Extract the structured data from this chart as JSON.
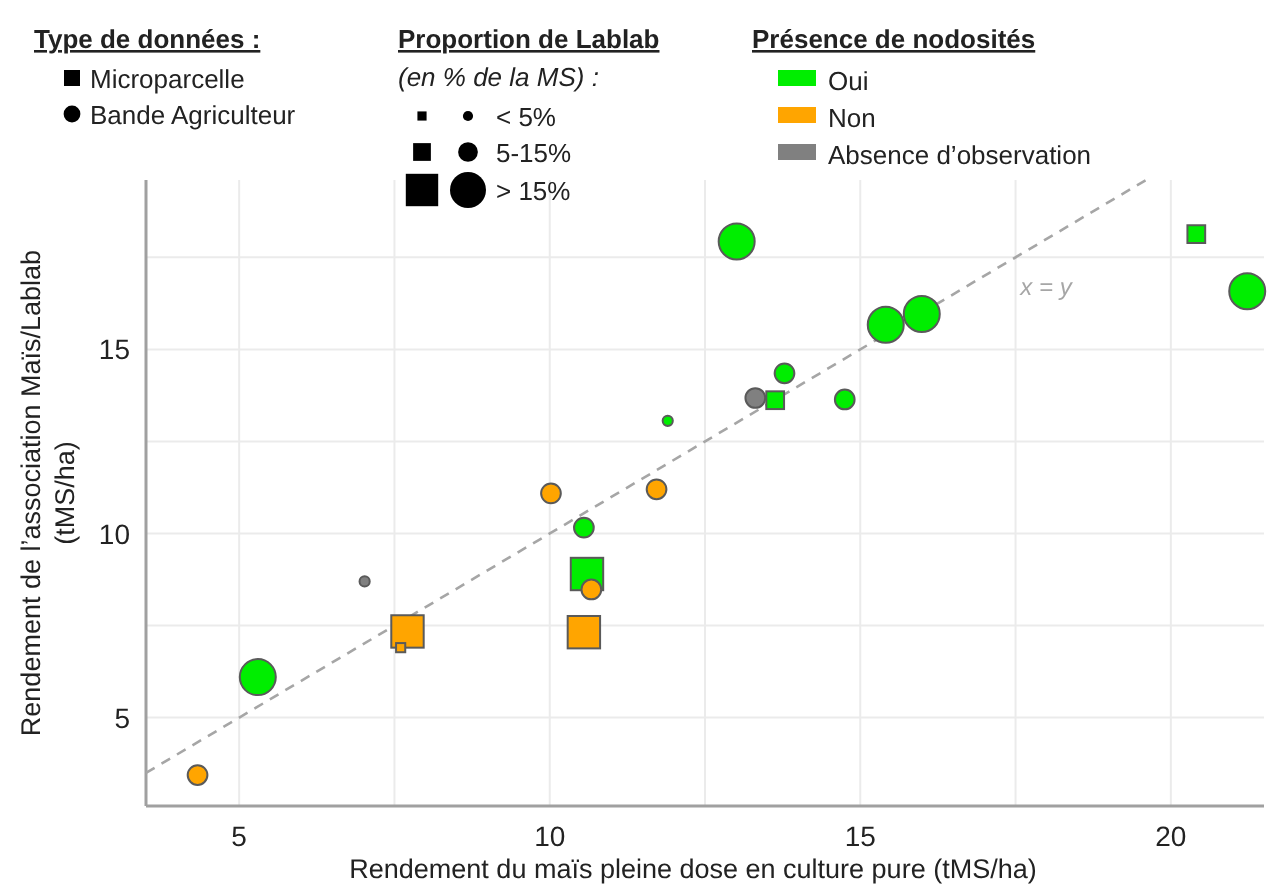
{
  "chart_data": {
    "type": "bubble",
    "xlabel": "Rendement du maïs pleine dose en culture pure (tMS/ha)",
    "ylabel": "Rendement de l’association Maïs/Lablab\n(tMS/ha)",
    "xlim": [
      3.5,
      21.5
    ],
    "ylim": [
      2.6,
      19.6
    ],
    "xticks": [
      5,
      {
        "value": 7.5,
        "label": null
      },
      10,
      {
        "value": 12.5,
        "label": null
      },
      15,
      {
        "value": 17.5,
        "label": null
      },
      20
    ],
    "yticks": [
      5,
      {
        "value": 7.5,
        "label": null
      },
      10,
      {
        "value": 12.5,
        "label": null
      },
      15,
      {
        "value": 17.5,
        "label": null
      }
    ],
    "grid": true,
    "legend": "top",
    "annotations": [
      "Type de données :",
      "Microparcelle",
      "Bande Agriculteur",
      "Proportion de Lablab",
      "(en % de la MS) :",
      "< 5%",
      "5-15%",
      "> 15%",
      "Présence de nodosités"
    ],
    "series": [
      {
        "name": "x = y",
        "type": "line",
        "color": "#a6a6a6",
        "line_style": "dashed",
        "marker": "none",
        "x": [
          3.5,
          19.6
        ],
        "values": [
          3.5,
          19.6
        ]
      },
      {
        "name": "Oui",
        "color": "#00ee00",
        "marker": "circle",
        "x": [
          5.3,
          10.55,
          11.9,
          13.01,
          13.78,
          14.75,
          15.41,
          15.99,
          21.23
        ],
        "values": [
          6.1,
          10.16,
          13.06,
          17.93,
          14.35,
          13.64,
          15.67,
          15.96,
          16.58
        ],
        "sizes": [
          1,
          0.3,
          0.08,
          1,
          0.3,
          0.3,
          1,
          1,
          1
        ]
      },
      {
        "color": "#00ee00",
        "marker": "square",
        "x": [
          10.6,
          13.63,
          20.41
        ],
        "values": [
          8.9,
          13.62,
          18.13
        ],
        "sizes": [
          1,
          0.3,
          0.3
        ]
      },
      {
        "name": "Non",
        "color": "#ffa500",
        "marker": "circle",
        "x": [
          4.33,
          10.02,
          10.67,
          11.72
        ],
        "values": [
          3.44,
          11.09,
          8.48,
          11.2
        ],
        "sizes": [
          0.3,
          0.3,
          0.3,
          0.3
        ]
      },
      {
        "color": "#ffa500",
        "marker": "square",
        "x": [
          7.71,
          7.6,
          10.55
        ],
        "values": [
          7.34,
          6.9,
          7.32
        ],
        "sizes": [
          1,
          0.08,
          1
        ]
      },
      {
        "name": "Absence d’observation",
        "color": "#808080",
        "marker": "circle",
        "x": [
          7.02,
          13.31
        ],
        "values": [
          8.7,
          13.68
        ],
        "sizes": [
          0.08,
          0.3
        ]
      }
    ]
  }
}
